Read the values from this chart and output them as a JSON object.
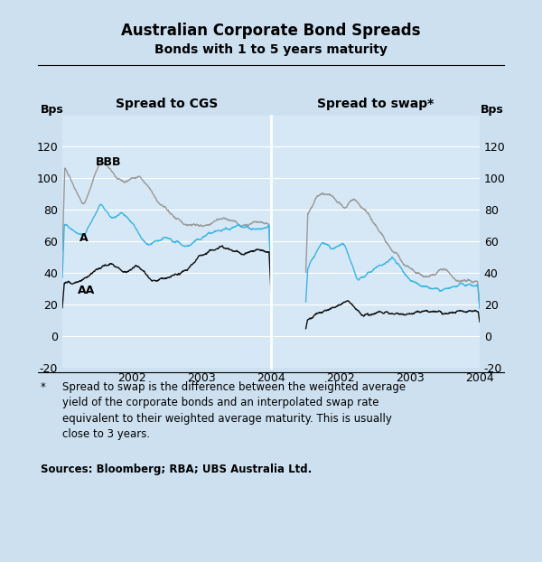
{
  "title": "Australian Corporate Bond Spreads",
  "subtitle": "Bonds with 1 to 5 years maturity",
  "left_panel_title": "Spread to CGS",
  "right_panel_title": "Spread to swap*",
  "ylabel_left": "Bps",
  "ylabel_right": "Bps",
  "ylim": [
    -20,
    140
  ],
  "yticks": [
    -20,
    0,
    20,
    40,
    60,
    80,
    100,
    120
  ],
  "xtick_labels_left": [
    "2002",
    "2003",
    "2004"
  ],
  "xtick_labels_right": [
    "2002",
    "2003",
    "2004"
  ],
  "background_color": "#cce0f0",
  "plot_bg_color": "#d6e8f5",
  "footnote_star": "*",
  "footnote_text": "Spread to swap is the difference between the weighted average\nyield of the corporate bonds and an interpolated swap rate\nequivalent to their weighted average maturity. This is usually\nclose to 3 years.",
  "sources": "Sources: Bloomberg; RBA; UBS Australia Ltd.",
  "color_bbb": "#999999",
  "color_a": "#3ab5e6",
  "color_aa": "#111111",
  "linewidth": 1.0
}
